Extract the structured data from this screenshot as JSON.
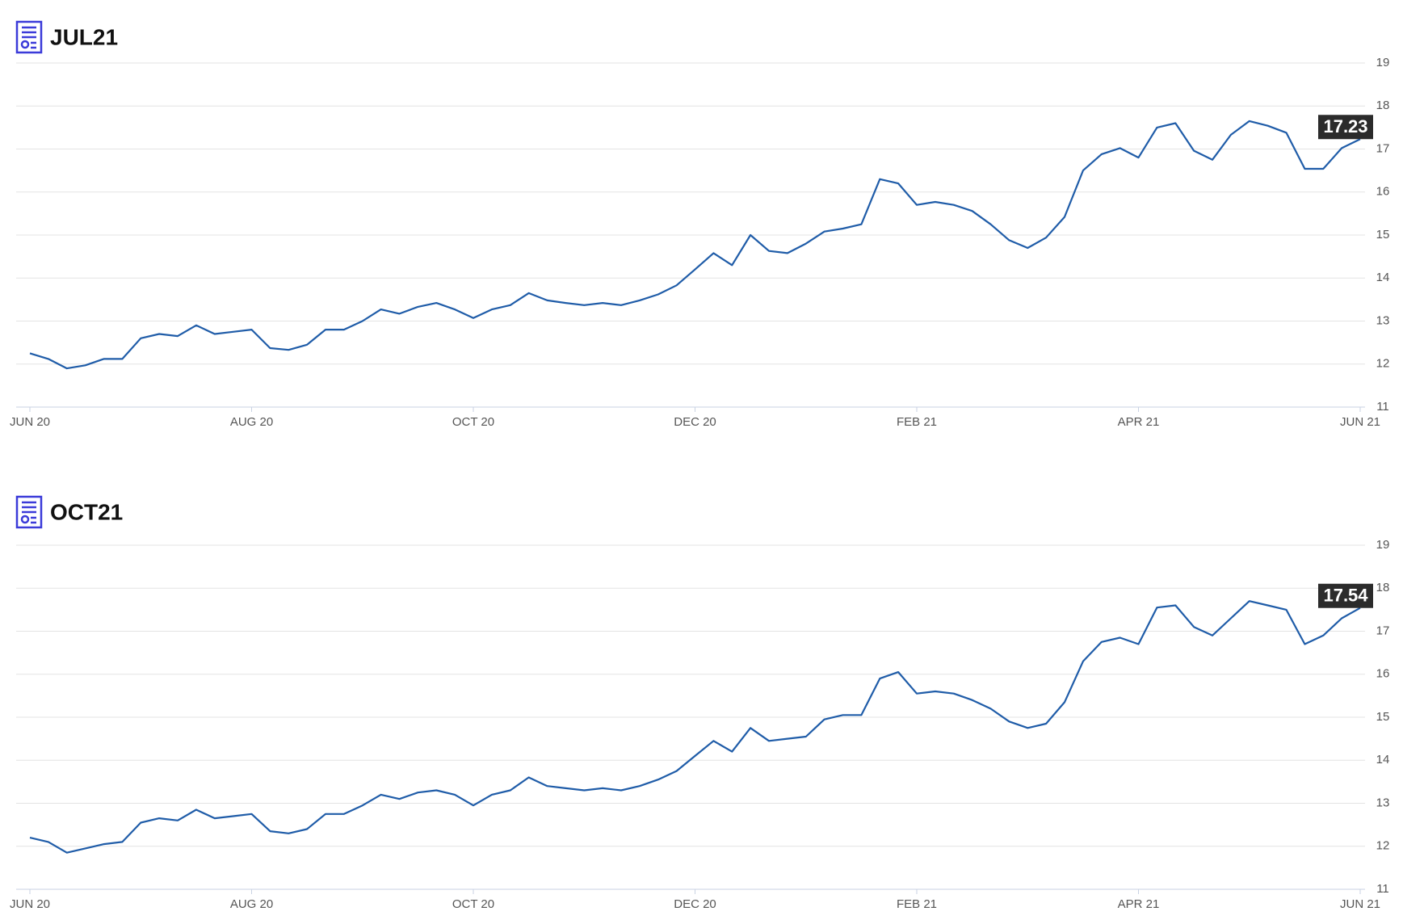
{
  "chart_data": [
    {
      "type": "line",
      "title": "JUL21",
      "categories": [
        "JUN 20",
        null,
        null,
        null,
        null,
        null,
        null,
        null,
        null,
        null,
        null,
        null,
        "AUG 20",
        null,
        null,
        null,
        null,
        null,
        null,
        null,
        null,
        null,
        null,
        null,
        "OCT 20",
        null,
        null,
        null,
        null,
        null,
        null,
        null,
        null,
        null,
        null,
        null,
        "DEC 20",
        null,
        null,
        null,
        null,
        null,
        null,
        null,
        null,
        null,
        null,
        null,
        "FEB 21",
        null,
        null,
        null,
        null,
        null,
        null,
        null,
        null,
        null,
        null,
        null,
        "APR 21",
        null,
        null,
        null,
        null,
        null,
        null,
        null,
        null,
        null,
        null,
        null,
        "JUN 21"
      ],
      "values": [
        12.25,
        12.12,
        11.9,
        11.97,
        12.12,
        12.12,
        12.6,
        12.7,
        12.65,
        12.9,
        12.7,
        12.75,
        12.8,
        12.37,
        12.33,
        12.45,
        12.8,
        12.8,
        13.0,
        13.27,
        13.17,
        13.33,
        13.42,
        13.27,
        13.07,
        13.27,
        13.37,
        13.65,
        13.48,
        13.42,
        13.37,
        13.42,
        13.37,
        13.48,
        13.62,
        13.83,
        14.2,
        14.58,
        14.3,
        15.0,
        14.63,
        14.58,
        14.8,
        15.08,
        15.15,
        15.25,
        16.3,
        16.2,
        15.7,
        15.77,
        15.7,
        15.56,
        15.25,
        14.88,
        14.7,
        14.94,
        15.42,
        16.5,
        16.88,
        17.02,
        16.8,
        17.5,
        17.6,
        16.96,
        16.75,
        17.33,
        17.65,
        17.54,
        17.38,
        16.54,
        16.54,
        17.02,
        17.23
      ],
      "color": "#1f5ca8",
      "ylim": [
        11,
        19
      ],
      "yticks": [
        11,
        12,
        13,
        14,
        15,
        16,
        17,
        18,
        19
      ],
      "grid": true
    },
    {
      "type": "line",
      "title": "OCT21",
      "categories": [
        "JUN 20",
        null,
        null,
        null,
        null,
        null,
        null,
        null,
        null,
        null,
        null,
        null,
        "AUG 20",
        null,
        null,
        null,
        null,
        null,
        null,
        null,
        null,
        null,
        null,
        null,
        "OCT 20",
        null,
        null,
        null,
        null,
        null,
        null,
        null,
        null,
        null,
        null,
        null,
        "DEC 20",
        null,
        null,
        null,
        null,
        null,
        null,
        null,
        null,
        null,
        null,
        null,
        "FEB 21",
        null,
        null,
        null,
        null,
        null,
        null,
        null,
        null,
        null,
        null,
        null,
        "APR 21",
        null,
        null,
        null,
        null,
        null,
        null,
        null,
        null,
        null,
        null,
        null,
        "JUN 21"
      ],
      "values": [
        12.2,
        12.1,
        11.85,
        11.95,
        12.05,
        12.1,
        12.55,
        12.65,
        12.6,
        12.85,
        12.65,
        12.7,
        12.75,
        12.35,
        12.3,
        12.4,
        12.75,
        12.75,
        12.95,
        13.2,
        13.1,
        13.25,
        13.3,
        13.2,
        12.95,
        13.2,
        13.3,
        13.6,
        13.4,
        13.35,
        13.3,
        13.35,
        13.3,
        13.4,
        13.55,
        13.75,
        14.1,
        14.45,
        14.2,
        14.75,
        14.45,
        14.5,
        14.55,
        14.95,
        15.05,
        15.05,
        15.9,
        16.05,
        15.55,
        15.6,
        15.55,
        15.4,
        15.2,
        14.9,
        14.75,
        14.85,
        15.35,
        16.3,
        16.75,
        16.85,
        16.7,
        17.55,
        17.6,
        17.1,
        16.9,
        17.3,
        17.7,
        17.6,
        17.5,
        16.7,
        16.9,
        17.3,
        17.54
      ],
      "color": "#1f5ca8",
      "ylim": [
        11,
        19
      ],
      "yticks": [
        11,
        12,
        13,
        14,
        15,
        16,
        17,
        18,
        19
      ],
      "grid": true
    }
  ]
}
